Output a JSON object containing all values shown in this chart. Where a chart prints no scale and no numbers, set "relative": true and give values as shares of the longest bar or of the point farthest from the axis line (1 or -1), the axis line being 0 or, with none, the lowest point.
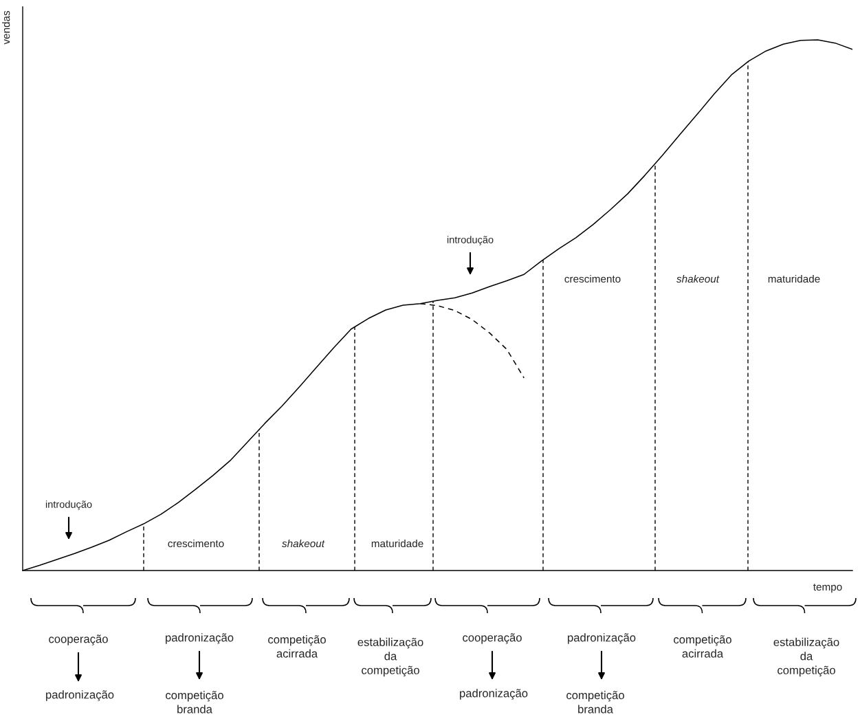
{
  "chart_data": {
    "type": "line",
    "relative": true,
    "xlabel": "tempo",
    "ylabel": "vendas",
    "categories": [
      null,
      null,
      null,
      null,
      null,
      null,
      null,
      null,
      null,
      null,
      null,
      null,
      null,
      null,
      null,
      null,
      null,
      null,
      null,
      null,
      null,
      null,
      null,
      null,
      null,
      null,
      null,
      null,
      null,
      null,
      null,
      null,
      null,
      null,
      null,
      null,
      null,
      null,
      null,
      null,
      null,
      null,
      null,
      null,
      null,
      null,
      null,
      null,
      null
    ],
    "series": [
      {
        "color": "#000000",
        "line_style": "solid",
        "values": [
          0,
          0.01,
          0.021,
          0.032,
          0.044,
          0.057,
          0.073,
          0.088,
          0.106,
          0.128,
          0.153,
          0.179,
          0.207,
          0.242,
          0.277,
          0.31,
          0.346,
          0.383,
          0.42,
          0.455,
          0.475,
          0.491,
          0.5,
          0.503,
          0.509,
          0.514,
          0.523,
          0.535,
          0.546,
          0.558,
          0.583,
          0.606,
          0.627,
          0.652,
          0.68,
          0.71,
          0.745,
          0.782,
          0.821,
          0.859,
          0.898,
          0.934,
          0.96,
          0.979,
          0.992,
          0.999,
          1.0,
          0.994,
          0.982
        ]
      },
      {
        "color": "#000000",
        "line_style": "dashed",
        "values": [
          null,
          null,
          null,
          null,
          null,
          null,
          null,
          null,
          null,
          null,
          null,
          null,
          null,
          null,
          null,
          null,
          null,
          null,
          null,
          null,
          null,
          null,
          null,
          0.503,
          0.499,
          0.49,
          0.473,
          0.448,
          0.417,
          0.363,
          null,
          null,
          null,
          null,
          null,
          null,
          null,
          null,
          null,
          null,
          null,
          null,
          null,
          null,
          null,
          null,
          null,
          null,
          null
        ]
      }
    ],
    "annotations": [
      "introdução",
      "introdução",
      "cooperação",
      "padronização",
      "padronização",
      "competição\nbranda",
      "competição\nacirrada",
      "estabilização\nda\ncompetição",
      "cooperação",
      "padronização",
      "padronização",
      "competição\nbranda",
      "competição\nacirrada",
      "estabilização\nda\ncompetição",
      "crescimento",
      "shakeout",
      "maturidade",
      "crescimento",
      "shakeout",
      "maturidade"
    ]
  }
}
